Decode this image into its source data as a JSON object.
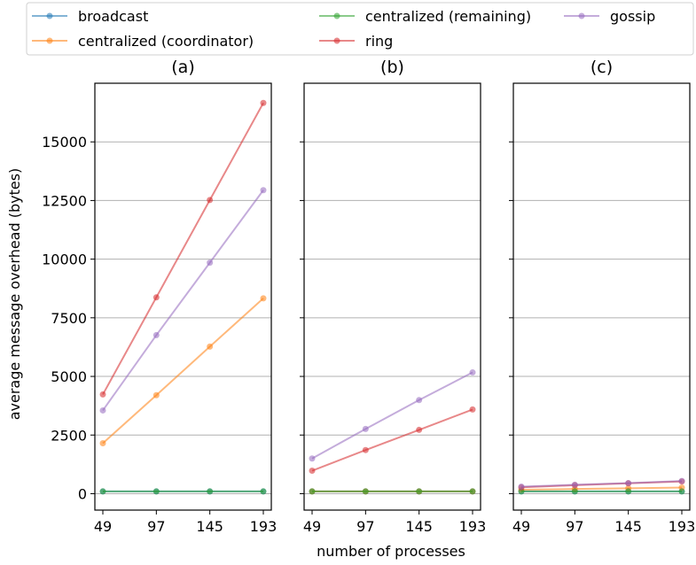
{
  "chart_data": {
    "type": "line",
    "ylabel": "average message overhead (bytes)",
    "xlabel": "number of processes",
    "x": [
      49,
      97,
      145,
      193
    ],
    "ylim": [
      -700,
      17500
    ],
    "yticks": [
      0,
      2500,
      5000,
      7500,
      10000,
      12500,
      15000
    ],
    "grid": "horizontal",
    "legend_placement": "top",
    "legend": [
      {
        "name": "broadcast",
        "color": "#1f77b4"
      },
      {
        "name": "centralized (coordinator)",
        "color": "#ff7f0e"
      },
      {
        "name": "centralized (remaining)",
        "color": "#2ca02c"
      },
      {
        "name": "ring",
        "color": "#d62728"
      },
      {
        "name": "gossip",
        "color": "#9467bd"
      }
    ],
    "panels": [
      {
        "title": "(a)",
        "series": [
          {
            "name": "broadcast",
            "color": "#1f77b4",
            "values": [
              96,
              96,
              96,
              96
            ]
          },
          {
            "name": "centralized (coordinator)",
            "color": "#ff7f0e",
            "values": [
              2150,
              4200,
              6270,
              8330
            ]
          },
          {
            "name": "centralized (remaining)",
            "color": "#2ca02c",
            "values": [
              96,
              96,
              96,
              96
            ]
          },
          {
            "name": "ring",
            "color": "#d62728",
            "values": [
              4230,
              8370,
              12520,
              16660
            ]
          },
          {
            "name": "gossip",
            "color": "#9467bd",
            "values": [
              3550,
              6760,
              9850,
              12940
            ]
          }
        ]
      },
      {
        "title": "(b)",
        "series": [
          {
            "name": "broadcast",
            "color": "#1f77b4",
            "values": [
              96,
              96,
              96,
              96
            ]
          },
          {
            "name": "centralized (coordinator)",
            "color": "#ff7f0e",
            "values": [
              96,
              96,
              96,
              96
            ]
          },
          {
            "name": "centralized (remaining)",
            "color": "#2ca02c",
            "values": [
              96,
              96,
              96,
              96
            ]
          },
          {
            "name": "ring",
            "color": "#d62728",
            "values": [
              980,
              1860,
              2720,
              3590
            ]
          },
          {
            "name": "gossip",
            "color": "#9467bd",
            "values": [
              1500,
              2760,
              3990,
              5170
            ]
          }
        ]
      },
      {
        "title": "(c)",
        "series": [
          {
            "name": "broadcast",
            "color": "#1f77b4",
            "values": [
              96,
              96,
              96,
              96
            ]
          },
          {
            "name": "centralized (coordinator)",
            "color": "#ff7f0e",
            "values": [
              170,
              200,
              230,
              260
            ]
          },
          {
            "name": "centralized (remaining)",
            "color": "#2ca02c",
            "values": [
              96,
              96,
              96,
              96
            ]
          },
          {
            "name": "ring",
            "color": "#d62728",
            "values": [
              270,
              360,
              440,
              520
            ]
          },
          {
            "name": "gossip",
            "color": "#9467bd",
            "values": [
              300,
              380,
              450,
              540
            ]
          }
        ]
      }
    ]
  }
}
